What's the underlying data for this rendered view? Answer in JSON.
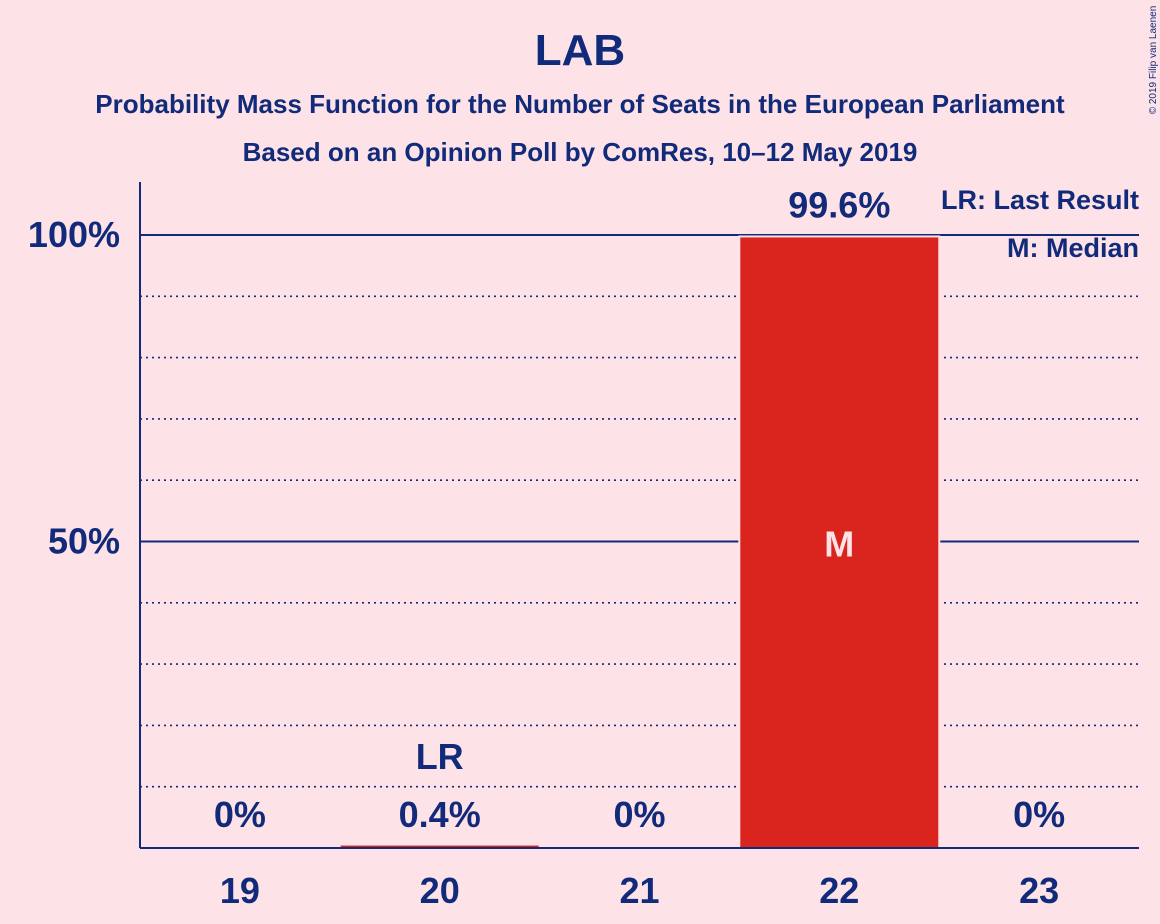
{
  "chart_data": {
    "type": "bar",
    "title": "LAB",
    "subtitle_1": "Probability Mass Function for the Number of Seats in the European Parliament",
    "subtitle_2": "Based on an Opinion Poll by ComRes, 10–12 May 2019",
    "categories": [
      "19",
      "20",
      "21",
      "22",
      "23"
    ],
    "values": [
      0,
      0.4,
      0,
      99.6,
      0
    ],
    "value_labels": [
      "0%",
      "0.4%",
      "0%",
      "99.6%",
      "0%"
    ],
    "ylim": [
      0,
      110
    ],
    "yticks": [
      {
        "value": 50,
        "label": "50%"
      },
      {
        "value": 100,
        "label": "100%"
      }
    ],
    "minor_grid": [
      10,
      20,
      30,
      40,
      60,
      70,
      80,
      90
    ],
    "last_result": {
      "category": "20",
      "label": "LR"
    },
    "median": {
      "category": "22",
      "label": "M"
    },
    "legend": [
      "LR: Last Result",
      "M: Median"
    ],
    "legend_position": "top-right",
    "copyright": "© 2019 Filip van Laenen",
    "colors": {
      "bar": "#DA251E",
      "text": "#112a7a",
      "background": "#FDE3E7"
    }
  }
}
